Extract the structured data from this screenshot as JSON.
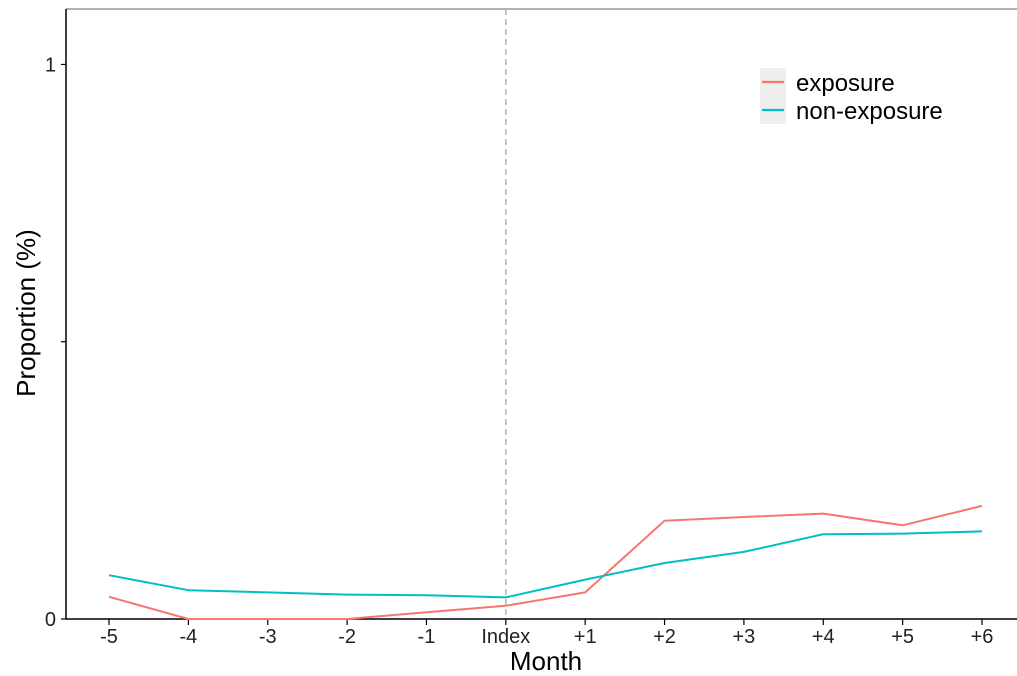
{
  "chart_data": {
    "type": "line",
    "xlabel": "Month",
    "ylabel": "Proportion (%)",
    "categories": [
      "-5",
      "-4",
      "-3",
      "-2",
      "-1",
      "Index",
      "+1",
      "+2",
      "+3",
      "+4",
      "+5",
      "+6"
    ],
    "y_ticks": [
      "0",
      "1"
    ],
    "ylim": [
      0,
      1.1
    ],
    "reference_line": "Index",
    "grid": false,
    "legend_position": "top-right",
    "series": [
      {
        "name": "exposure",
        "color": "#F8766D",
        "values": [
          0.04,
          0.0,
          0.0,
          0.0,
          0.012,
          0.024,
          0.048,
          0.177,
          0.184,
          0.19,
          0.169,
          0.204
        ]
      },
      {
        "name": "non-exposure",
        "color": "#00BFC4",
        "values": [
          0.079,
          0.052,
          0.048,
          0.044,
          0.043,
          0.039,
          0.071,
          0.101,
          0.121,
          0.153,
          0.154,
          0.158
        ]
      }
    ]
  }
}
